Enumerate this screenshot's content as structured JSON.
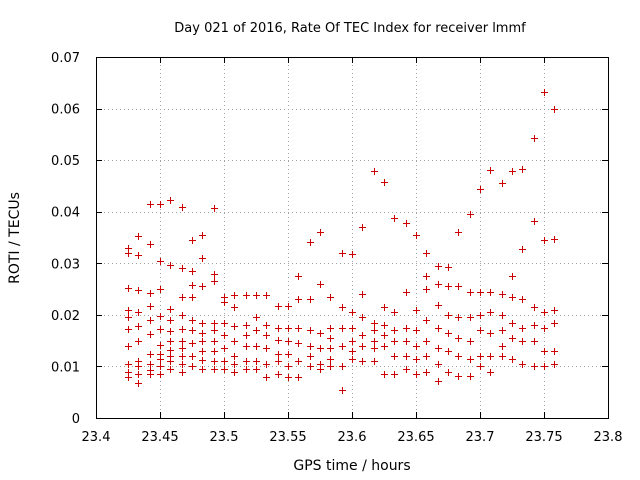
{
  "chart_data": {
    "type": "scatter",
    "title": "Day 021 of 2016, Rate Of TEC Index for receiver lmmf",
    "xlabel": "GPS time / hours",
    "ylabel": "ROTI / TECUs",
    "xlim": [
      23.4,
      23.8
    ],
    "ylim": [
      0,
      0.07
    ],
    "xticks": [
      "23.4",
      "23.45",
      "23.5",
      "23.55",
      "23.6",
      "23.65",
      "23.7",
      "23.75",
      "23.8"
    ],
    "yticks": [
      "0",
      "0.01",
      "0.02",
      "0.03",
      "0.04",
      "0.05",
      "0.06",
      "0.07"
    ],
    "grid": true,
    "marker": "plus",
    "color": "#cc0000",
    "x": [
      23.425,
      23.425,
      23.425,
      23.425,
      23.425,
      23.425,
      23.425,
      23.425,
      23.425,
      23.425,
      23.433,
      23.433,
      23.433,
      23.433,
      23.433,
      23.433,
      23.433,
      23.433,
      23.433,
      23.433,
      23.442,
      23.442,
      23.442,
      23.442,
      23.442,
      23.442,
      23.442,
      23.442,
      23.442,
      23.442,
      23.45,
      23.45,
      23.45,
      23.45,
      23.45,
      23.45,
      23.45,
      23.45,
      23.45,
      23.45,
      23.458,
      23.458,
      23.458,
      23.458,
      23.458,
      23.458,
      23.458,
      23.458,
      23.458,
      23.458,
      23.467,
      23.467,
      23.467,
      23.467,
      23.467,
      23.467,
      23.467,
      23.467,
      23.467,
      23.467,
      23.475,
      23.475,
      23.475,
      23.475,
      23.475,
      23.475,
      23.475,
      23.475,
      23.475,
      23.483,
      23.483,
      23.483,
      23.483,
      23.483,
      23.483,
      23.483,
      23.483,
      23.483,
      23.492,
      23.492,
      23.492,
      23.492,
      23.492,
      23.492,
      23.492,
      23.492,
      23.492,
      23.5,
      23.5,
      23.5,
      23.5,
      23.5,
      23.5,
      23.5,
      23.508,
      23.508,
      23.508,
      23.508,
      23.508,
      23.508,
      23.508,
      23.517,
      23.517,
      23.517,
      23.517,
      23.517,
      23.517,
      23.525,
      23.525,
      23.525,
      23.525,
      23.525,
      23.525,
      23.533,
      23.533,
      23.533,
      23.533,
      23.533,
      23.533,
      23.542,
      23.542,
      23.542,
      23.542,
      23.542,
      23.542,
      23.55,
      23.55,
      23.55,
      23.55,
      23.55,
      23.55,
      23.558,
      23.558,
      23.558,
      23.558,
      23.558,
      23.558,
      23.567,
      23.567,
      23.567,
      23.567,
      23.567,
      23.567,
      23.575,
      23.575,
      23.575,
      23.575,
      23.575,
      23.575,
      23.583,
      23.583,
      23.583,
      23.583,
      23.583,
      23.583,
      23.592,
      23.592,
      23.592,
      23.592,
      23.592,
      23.592,
      23.6,
      23.6,
      23.6,
      23.6,
      23.6,
      23.6,
      23.608,
      23.608,
      23.608,
      23.608,
      23.608,
      23.608,
      23.617,
      23.617,
      23.617,
      23.617,
      23.617,
      23.617,
      23.625,
      23.625,
      23.625,
      23.625,
      23.625,
      23.625,
      23.633,
      23.633,
      23.633,
      23.633,
      23.633,
      23.633,
      23.642,
      23.642,
      23.642,
      23.642,
      23.642,
      23.642,
      23.65,
      23.65,
      23.65,
      23.65,
      23.65,
      23.65,
      23.658,
      23.658,
      23.658,
      23.658,
      23.658,
      23.658,
      23.658,
      23.667,
      23.667,
      23.667,
      23.667,
      23.667,
      23.667,
      23.667,
      23.675,
      23.675,
      23.675,
      23.675,
      23.675,
      23.675,
      23.683,
      23.683,
      23.683,
      23.683,
      23.683,
      23.683,
      23.692,
      23.692,
      23.692,
      23.692,
      23.692,
      23.692,
      23.7,
      23.7,
      23.7,
      23.7,
      23.7,
      23.7,
      23.708,
      23.708,
      23.708,
      23.708,
      23.708,
      23.708,
      23.717,
      23.717,
      23.717,
      23.717,
      23.717,
      23.717,
      23.725,
      23.725,
      23.725,
      23.725,
      23.725,
      23.725,
      23.733,
      23.733,
      23.733,
      23.733,
      23.733,
      23.733,
      23.742,
      23.742,
      23.742,
      23.742,
      23.742,
      23.742,
      23.75,
      23.75,
      23.75,
      23.75,
      23.75,
      23.75,
      23.758,
      23.758,
      23.758,
      23.758,
      23.758,
      23.758
    ],
    "y": [
      0.033,
      0.032,
      0.0252,
      0.021,
      0.0195,
      0.0172,
      0.014,
      0.0105,
      0.009,
      0.008,
      0.0352,
      0.0316,
      0.0248,
      0.0205,
      0.0178,
      0.015,
      0.011,
      0.01,
      0.0085,
      0.0068,
      0.0415,
      0.0338,
      0.0243,
      0.0218,
      0.019,
      0.0162,
      0.0125,
      0.0105,
      0.0093,
      0.0085,
      0.0415,
      0.0305,
      0.025,
      0.0198,
      0.0172,
      0.0142,
      0.0125,
      0.0115,
      0.01,
      0.0085,
      0.0422,
      0.0296,
      0.0212,
      0.019,
      0.0168,
      0.015,
      0.0132,
      0.012,
      0.011,
      0.0095,
      0.041,
      0.029,
      0.0235,
      0.02,
      0.0172,
      0.015,
      0.0135,
      0.012,
      0.0105,
      0.009,
      0.0345,
      0.0285,
      0.0257,
      0.0235,
      0.019,
      0.017,
      0.0145,
      0.012,
      0.01,
      0.0355,
      0.031,
      0.0255,
      0.0185,
      0.0165,
      0.015,
      0.013,
      0.0112,
      0.0095,
      0.0408,
      0.028,
      0.0265,
      0.0185,
      0.017,
      0.015,
      0.013,
      0.011,
      0.0095,
      0.0235,
      0.0225,
      0.0185,
      0.016,
      0.0135,
      0.011,
      0.0095,
      0.0238,
      0.0215,
      0.0178,
      0.015,
      0.012,
      0.0105,
      0.009,
      0.0238,
      0.018,
      0.016,
      0.014,
      0.011,
      0.0095,
      0.0238,
      0.0195,
      0.017,
      0.014,
      0.011,
      0.0095,
      0.0238,
      0.018,
      0.016,
      0.0135,
      0.0105,
      0.008,
      0.0218,
      0.0175,
      0.0152,
      0.0125,
      0.011,
      0.0085,
      0.0218,
      0.0175,
      0.015,
      0.0125,
      0.01,
      0.008,
      0.0275,
      0.023,
      0.0175,
      0.0145,
      0.011,
      0.008,
      0.0342,
      0.023,
      0.017,
      0.014,
      0.012,
      0.01,
      0.036,
      0.026,
      0.0165,
      0.0135,
      0.0105,
      0.0095,
      0.0235,
      0.0175,
      0.0155,
      0.0135,
      0.0115,
      0.01,
      0.032,
      0.0215,
      0.0175,
      0.014,
      0.01,
      0.0055,
      0.0318,
      0.0205,
      0.0175,
      0.015,
      0.013,
      0.0115,
      0.037,
      0.024,
      0.0195,
      0.016,
      0.014,
      0.011,
      0.0478,
      0.0185,
      0.017,
      0.015,
      0.0135,
      0.011,
      0.0458,
      0.0215,
      0.018,
      0.016,
      0.014,
      0.0085,
      0.0388,
      0.0205,
      0.017,
      0.015,
      0.012,
      0.0085,
      0.0378,
      0.0245,
      0.0175,
      0.015,
      0.012,
      0.0095,
      0.0355,
      0.021,
      0.017,
      0.014,
      0.0115,
      0.0085,
      0.032,
      0.0275,
      0.025,
      0.019,
      0.015,
      0.012,
      0.009,
      0.0295,
      0.026,
      0.022,
      0.0175,
      0.0135,
      0.0105,
      0.0072,
      0.0292,
      0.0255,
      0.02,
      0.0165,
      0.013,
      0.009,
      0.036,
      0.0255,
      0.0195,
      0.0155,
      0.012,
      0.0082,
      0.0395,
      0.0245,
      0.0195,
      0.015,
      0.0115,
      0.0082,
      0.0445,
      0.0245,
      0.02,
      0.017,
      0.012,
      0.01,
      0.048,
      0.0245,
      0.0205,
      0.0165,
      0.012,
      0.009,
      0.0455,
      0.024,
      0.02,
      0.017,
      0.014,
      0.012,
      0.0478,
      0.0275,
      0.0235,
      0.0185,
      0.0155,
      0.0115,
      0.0482,
      0.0328,
      0.023,
      0.0175,
      0.015,
      0.0105,
      0.0543,
      0.0382,
      0.0215,
      0.018,
      0.015,
      0.01,
      0.0632,
      0.0345,
      0.0205,
      0.0175,
      0.013,
      0.01,
      0.06,
      0.0348,
      0.021,
      0.0185,
      0.013,
      0.0105
    ]
  }
}
